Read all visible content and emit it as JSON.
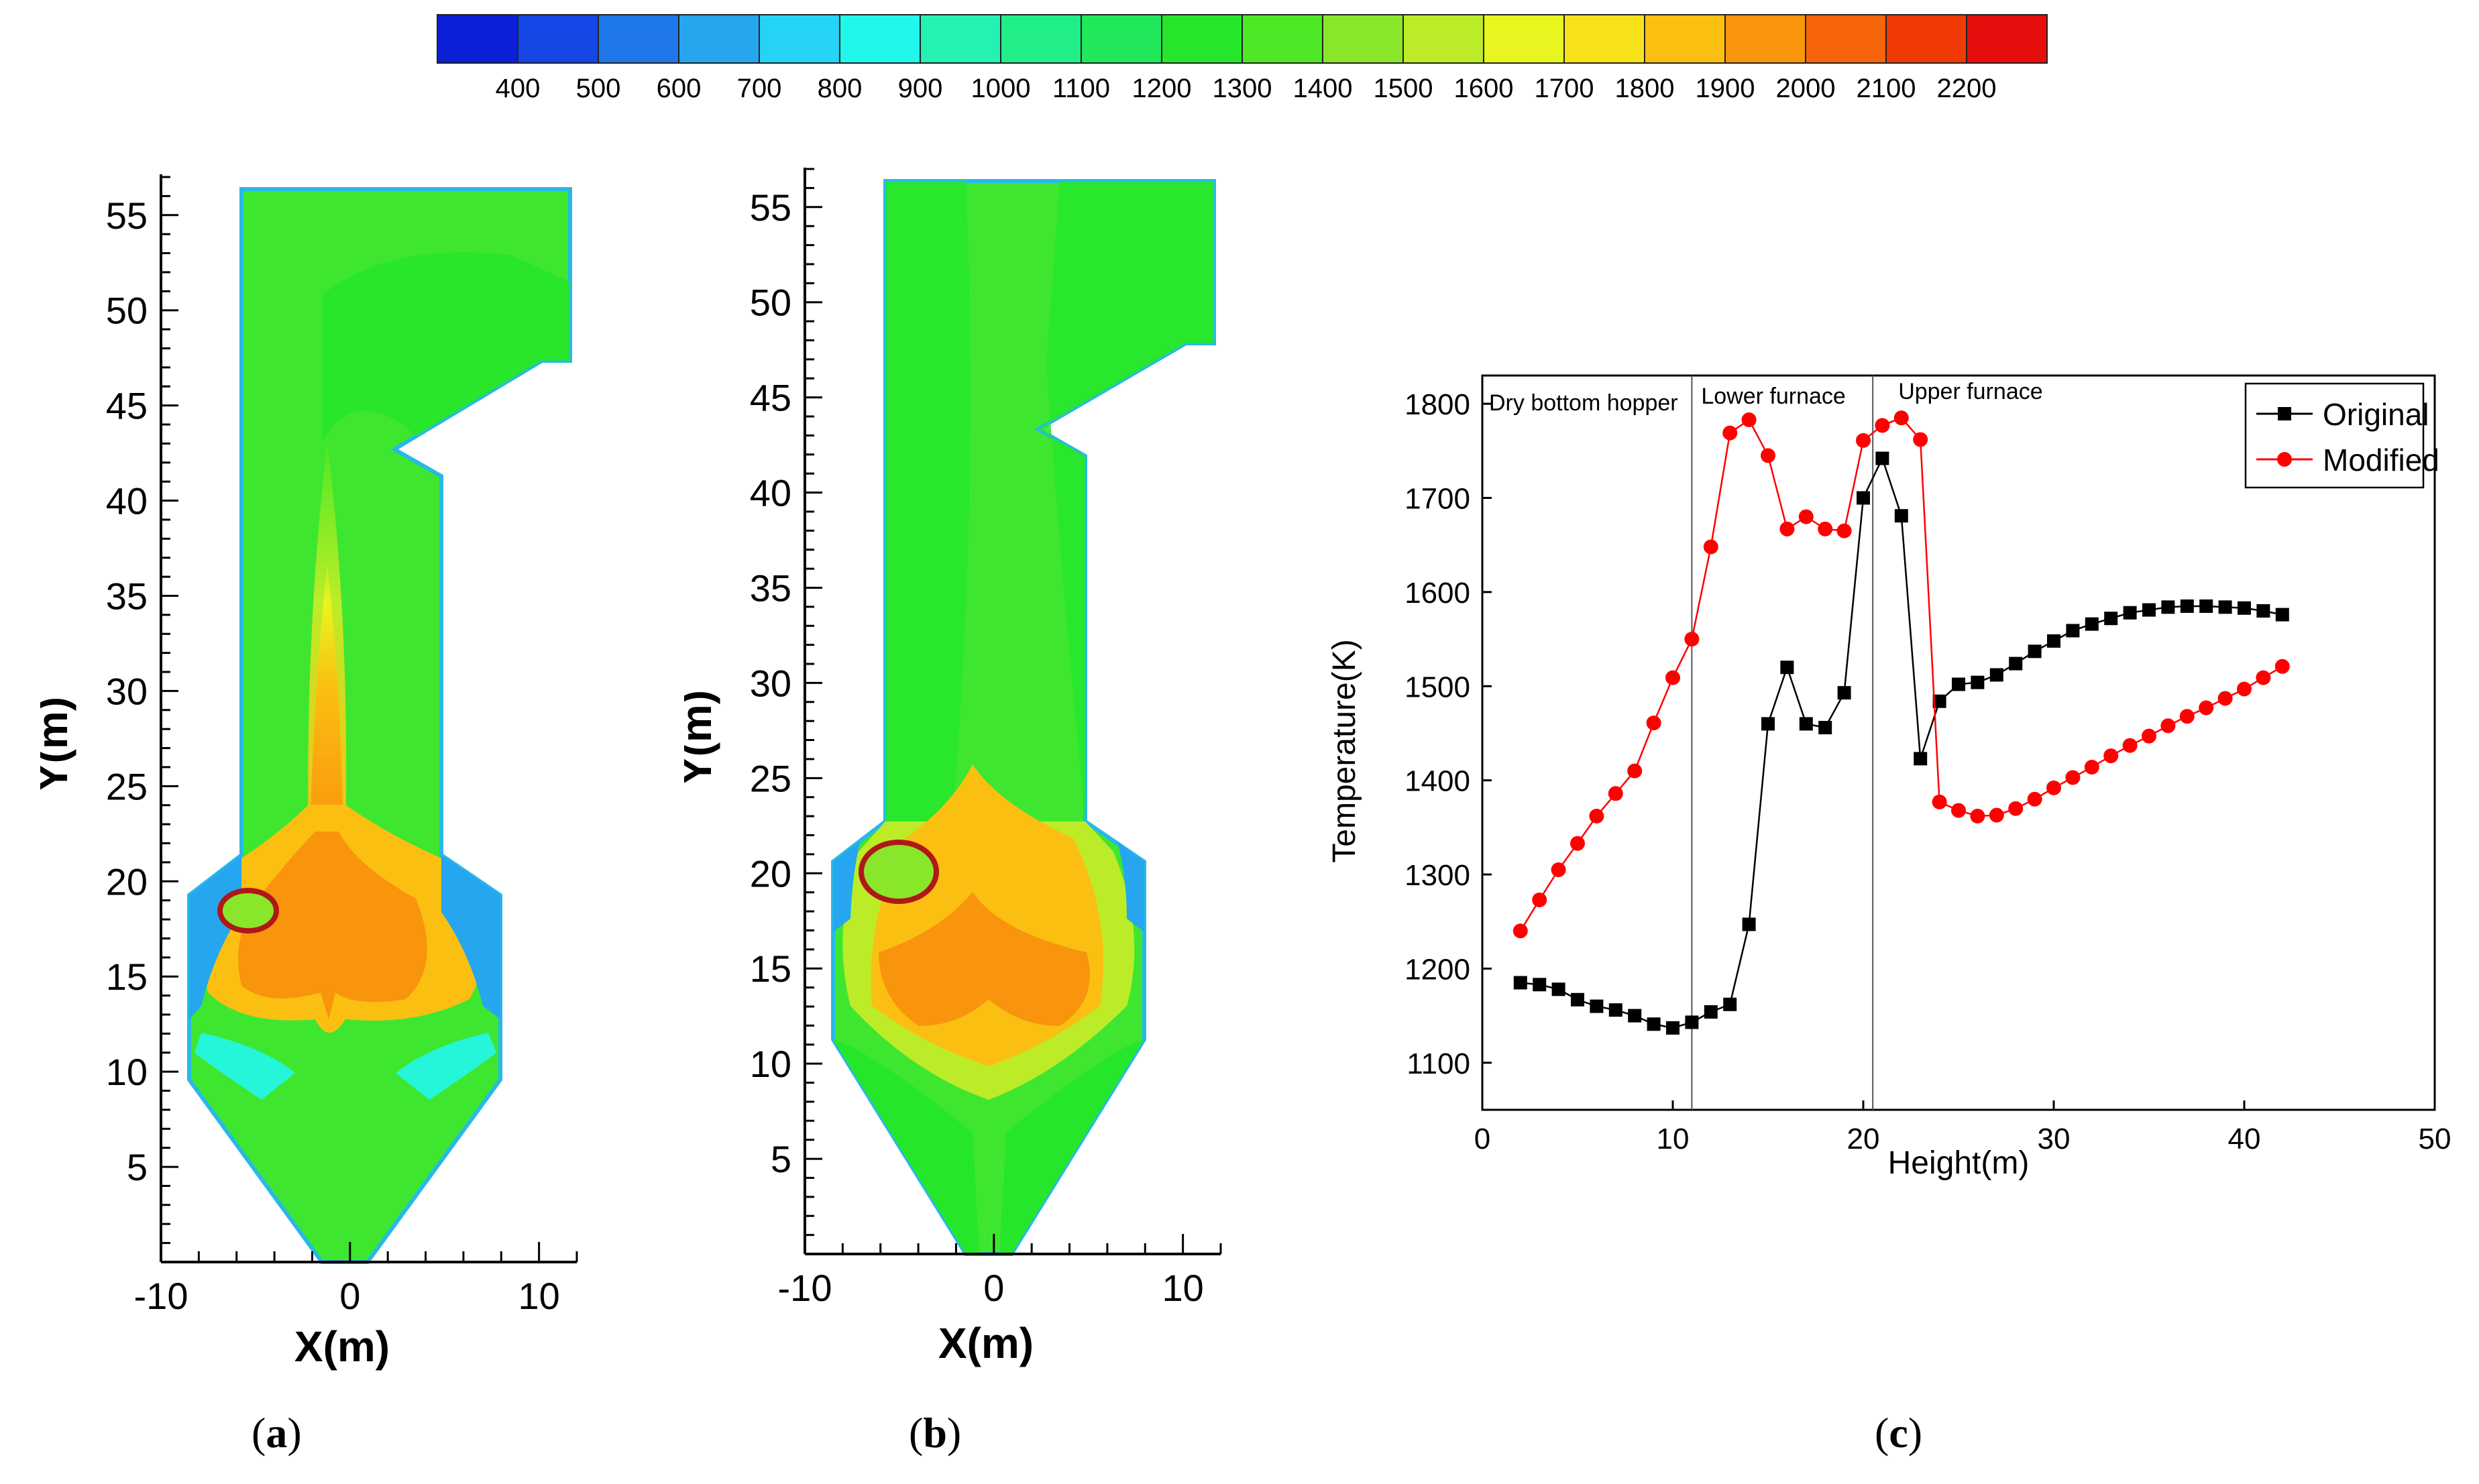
{
  "colorbar": {
    "ticks": [
      "400",
      "500",
      "600",
      "700",
      "800",
      "900",
      "1000",
      "1100",
      "1200",
      "1300",
      "1400",
      "1500",
      "1600",
      "1700",
      "1800",
      "1900",
      "2000",
      "2100",
      "2200"
    ],
    "colors": [
      "#0b1fd6",
      "#1546e6",
      "#1e78ea",
      "#25a6ef",
      "#25d3f7",
      "#22f7ec",
      "#23f2b2",
      "#21ee87",
      "#21e85a",
      "#26e62b",
      "#4fe826",
      "#8ae62a",
      "#bcec28",
      "#e8f51f",
      "#f8e21a",
      "#fbbf12",
      "#f9940d",
      "#f7650a",
      "#f03a06",
      "#e60d0d"
    ]
  },
  "panel_a": {
    "caption_open": "(",
    "caption_letter": "a",
    "caption_close": ")",
    "xlabel": "X(m)",
    "ylabel": "Y(m)",
    "xticks": [
      "-10",
      "0",
      "10"
    ],
    "yticks": [
      "5",
      "10",
      "15",
      "20",
      "25",
      "30",
      "35",
      "40",
      "45",
      "50",
      "55"
    ]
  },
  "panel_b": {
    "caption_open": "(",
    "caption_letter": "b",
    "caption_close": ")",
    "xlabel": "X(m)",
    "ylabel": "Y(m)",
    "xticks": [
      "-10",
      "0",
      "10"
    ],
    "yticks": [
      "5",
      "10",
      "15",
      "20",
      "25",
      "30",
      "35",
      "40",
      "45",
      "50",
      "55"
    ]
  },
  "panel_c": {
    "caption_open": "(",
    "caption_letter": "c",
    "caption_close": ")"
  },
  "chart_data": {
    "type": "line",
    "title": "",
    "xlabel": "Height(m)",
    "ylabel": "Temperature(K)",
    "xlim": [
      0,
      50
    ],
    "ylim": [
      1050,
      1830
    ],
    "xticks": [
      0,
      10,
      20,
      30,
      40,
      50
    ],
    "yticks": [
      1100,
      1200,
      1300,
      1400,
      1500,
      1600,
      1700,
      1800
    ],
    "legend_position": "top-right",
    "regions": [
      {
        "label": "Dry bottom hopper",
        "x_end": 11
      },
      {
        "label": "Lower furnace",
        "x_end": 20.5
      },
      {
        "label": "Upper furnace"
      }
    ],
    "region_dividers": [
      11,
      20.5
    ],
    "series": [
      {
        "name": "Original",
        "color": "#000000",
        "marker": "square",
        "x": [
          2,
          3,
          4,
          5,
          6,
          7,
          8,
          9,
          10,
          11,
          12,
          13,
          14,
          15,
          16,
          17,
          18,
          19,
          20,
          21,
          22,
          23,
          24,
          25,
          26,
          27,
          28,
          29,
          30,
          31,
          32,
          33,
          34,
          35,
          36,
          37,
          38,
          39,
          40,
          41,
          42
        ],
        "values": [
          1185,
          1183,
          1178,
          1167,
          1160,
          1156,
          1150,
          1141,
          1137,
          1143,
          1154,
          1162,
          1247,
          1460,
          1520,
          1460,
          1456,
          1493,
          1700,
          1742,
          1681,
          1423,
          1484,
          1502,
          1504,
          1512,
          1524,
          1537,
          1548,
          1559,
          1566,
          1572,
          1578,
          1581,
          1584,
          1585,
          1585,
          1584,
          1583,
          1580,
          1576
        ]
      },
      {
        "name": "Modified",
        "color": "#ff0000",
        "marker": "circle",
        "x": [
          2,
          3,
          4,
          5,
          6,
          7,
          8,
          9,
          10,
          11,
          12,
          13,
          14,
          15,
          16,
          17,
          18,
          19,
          20,
          21,
          22,
          23,
          24,
          25,
          26,
          27,
          28,
          29,
          30,
          31,
          32,
          33,
          34,
          35,
          36,
          37,
          38,
          39,
          40,
          41,
          42
        ],
        "values": [
          1240,
          1273,
          1305,
          1333,
          1362,
          1386,
          1410,
          1461,
          1509,
          1550,
          1648,
          1769,
          1783,
          1745,
          1667,
          1680,
          1667,
          1665,
          1761,
          1777,
          1785,
          1762,
          1377,
          1368,
          1362,
          1363,
          1370,
          1380,
          1392,
          1403,
          1414,
          1426,
          1437,
          1447,
          1458,
          1468,
          1477,
          1487,
          1497,
          1509,
          1521
        ]
      }
    ]
  }
}
